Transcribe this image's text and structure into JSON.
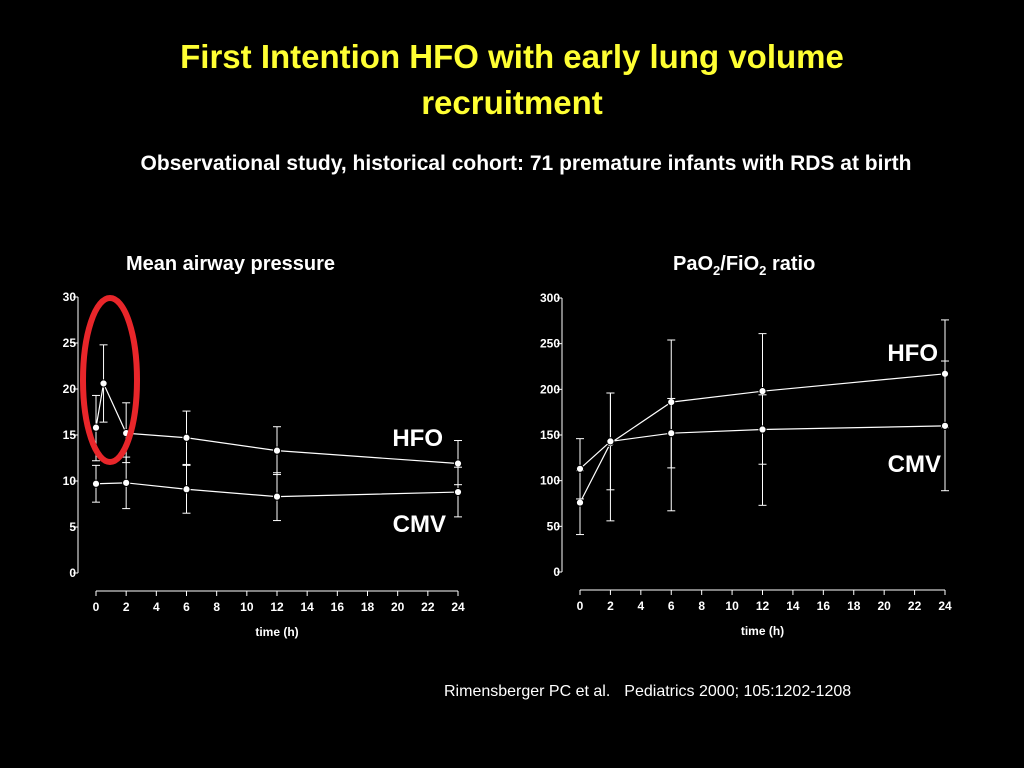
{
  "slide": {
    "title_line1": "First Intention HFO with early lung volume",
    "title_line2": "recruitment",
    "subtitle": "Observational study, historical cohort: 71 premature infants with RDS at birth",
    "citation_authors": "Rimensberger PC et al.",
    "citation_journal": "Pediatrics 2000; 105:1202-1208",
    "highlight_color": "#e8262a",
    "title_color": "#ffff33"
  },
  "chart_data": [
    {
      "type": "line",
      "title": "Mean airway pressure",
      "xlabel": "time (h)",
      "ylabel": "",
      "xlim": [
        0,
        24
      ],
      "ylim": [
        0,
        30
      ],
      "x_ticks": [
        0,
        2,
        4,
        6,
        8,
        10,
        12,
        14,
        16,
        18,
        20,
        22,
        24
      ],
      "y_ticks": [
        0,
        5,
        10,
        15,
        20,
        25,
        30
      ],
      "series": [
        {
          "name": "HFO",
          "x": [
            0,
            0.5,
            2,
            6,
            12,
            24
          ],
          "values": [
            15.8,
            20.6,
            15.2,
            14.7,
            13.3,
            11.9
          ],
          "err_low": [
            12.2,
            16.4,
            12.0,
            11.8,
            10.7,
            9.6
          ],
          "err_high": [
            19.3,
            24.8,
            18.5,
            17.6,
            15.9,
            14.4
          ]
        },
        {
          "name": "CMV",
          "x": [
            0,
            2,
            6,
            12,
            24
          ],
          "values": [
            9.7,
            9.8,
            9.1,
            8.3,
            8.8
          ],
          "err_low": [
            7.7,
            7.0,
            6.5,
            5.7,
            6.1
          ],
          "err_high": [
            11.7,
            12.6,
            11.7,
            10.9,
            11.5
          ]
        }
      ],
      "annotation": "highlight ellipse around first hours of HFO"
    },
    {
      "type": "line",
      "title": "ratio",
      "xlabel": "time (h)",
      "ylabel": "",
      "xlim": [
        0,
        24
      ],
      "ylim": [
        0,
        300
      ],
      "x_ticks": [
        0,
        2,
        4,
        6,
        8,
        10,
        12,
        14,
        16,
        18,
        20,
        22,
        24
      ],
      "y_ticks": [
        0,
        50,
        100,
        150,
        200,
        250,
        300
      ],
      "series": [
        {
          "name": "HFO",
          "x": [
            0,
            2,
            6,
            12,
            24
          ],
          "values": [
            76,
            141,
            186,
            198,
            217
          ],
          "err_low": [
            41,
            56,
            67,
            73,
            158
          ],
          "err_high": [
            111,
            196,
            254,
            261,
            276
          ]
        },
        {
          "name": "CMV",
          "x": [
            0,
            2,
            6,
            12,
            24
          ],
          "values": [
            113,
            143,
            152,
            156,
            160
          ],
          "err_low": [
            80,
            90,
            114,
            118,
            89
          ],
          "err_high": [
            146,
            196,
            190,
            194,
            231
          ]
        }
      ]
    }
  ]
}
